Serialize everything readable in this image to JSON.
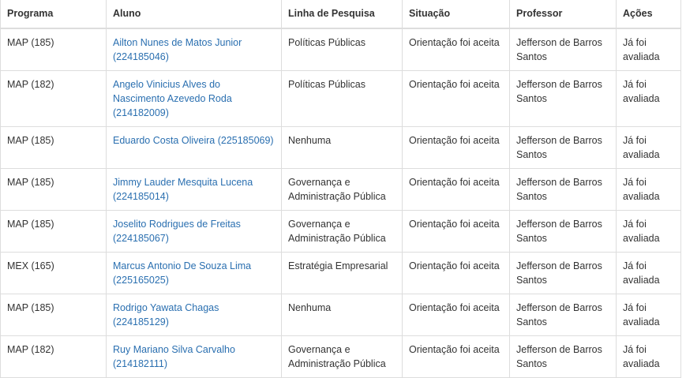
{
  "table": {
    "headers": {
      "programa": "Programa",
      "aluno": "Aluno",
      "linha": "Linha de Pesquisa",
      "situacao": "Situação",
      "professor": "Professor",
      "acoes": "Ações"
    },
    "rows": [
      {
        "programa": "MAP (185)",
        "aluno_line1": "Ailton Nunes de Matos Junior",
        "aluno_line2": "(224185046)",
        "aluno_line3": "",
        "linha_line1": "Políticas Públicas",
        "linha_line2": "",
        "situacao": "Orientação foi aceita",
        "professor_line1": "Jefferson de Barros",
        "professor_line2": "Santos",
        "acoes_line1": "Já foi",
        "acoes_line2": "avaliada"
      },
      {
        "programa": "MAP (182)",
        "aluno_line1": "Angelo Vinicius Alves do",
        "aluno_line2": "Nascimento Azevedo Roda",
        "aluno_line3": "(214182009)",
        "linha_line1": "Políticas Públicas",
        "linha_line2": "",
        "situacao": "Orientação foi aceita",
        "professor_line1": "Jefferson de Barros",
        "professor_line2": "Santos",
        "acoes_line1": "Já foi",
        "acoes_line2": "avaliada"
      },
      {
        "programa": "MAP (185)",
        "aluno_line1": "Eduardo Costa Oliveira (225185069)",
        "aluno_line2": "",
        "aluno_line3": "",
        "linha_line1": "Nenhuma",
        "linha_line2": "",
        "situacao": "Orientação foi aceita",
        "professor_line1": "Jefferson de Barros",
        "professor_line2": "Santos",
        "acoes_line1": "Já foi",
        "acoes_line2": "avaliada"
      },
      {
        "programa": "MAP (185)",
        "aluno_line1": "Jimmy Lauder Mesquita Lucena",
        "aluno_line2": "(224185014)",
        "aluno_line3": "",
        "linha_line1": "Governança e",
        "linha_line2": "Administração Pública",
        "situacao": "Orientação foi aceita",
        "professor_line1": "Jefferson de Barros",
        "professor_line2": "Santos",
        "acoes_line1": "Já foi",
        "acoes_line2": "avaliada"
      },
      {
        "programa": "MAP (185)",
        "aluno_line1": "Joselito Rodrigues de Freitas",
        "aluno_line2": "(224185067)",
        "aluno_line3": "",
        "linha_line1": "Governança e",
        "linha_line2": "Administração Pública",
        "situacao": "Orientação foi aceita",
        "professor_line1": "Jefferson de Barros",
        "professor_line2": "Santos",
        "acoes_line1": "Já foi",
        "acoes_line2": "avaliada"
      },
      {
        "programa": "MEX (165)",
        "aluno_line1": "Marcus Antonio De Souza Lima",
        "aluno_line2": "(225165025)",
        "aluno_line3": "",
        "linha_line1": "Estratégia Empresarial",
        "linha_line2": "",
        "situacao": "Orientação foi aceita",
        "professor_line1": "Jefferson de Barros",
        "professor_line2": "Santos",
        "acoes_line1": "Já foi",
        "acoes_line2": "avaliada"
      },
      {
        "programa": "MAP (185)",
        "aluno_line1": "Rodrigo Yawata Chagas",
        "aluno_line2": "(224185129)",
        "aluno_line3": "",
        "linha_line1": "Nenhuma",
        "linha_line2": "",
        "situacao": "Orientação foi aceita",
        "professor_line1": "Jefferson de Barros",
        "professor_line2": "Santos",
        "acoes_line1": "Já foi",
        "acoes_line2": "avaliada"
      },
      {
        "programa": "MAP (182)",
        "aluno_line1": "Ruy Mariano Silva Carvalho",
        "aluno_line2": "(214182111)",
        "aluno_line3": "",
        "linha_line1": "Governança e",
        "linha_line2": "Administração Pública",
        "situacao": "Orientação foi aceita",
        "professor_line1": "Jefferson de Barros",
        "professor_line2": "Santos",
        "acoes_line1": "Já foi",
        "acoes_line2": "avaliada"
      }
    ]
  },
  "colors": {
    "link": "#2a6fb0",
    "text": "#333333",
    "border": "#dddddd"
  }
}
